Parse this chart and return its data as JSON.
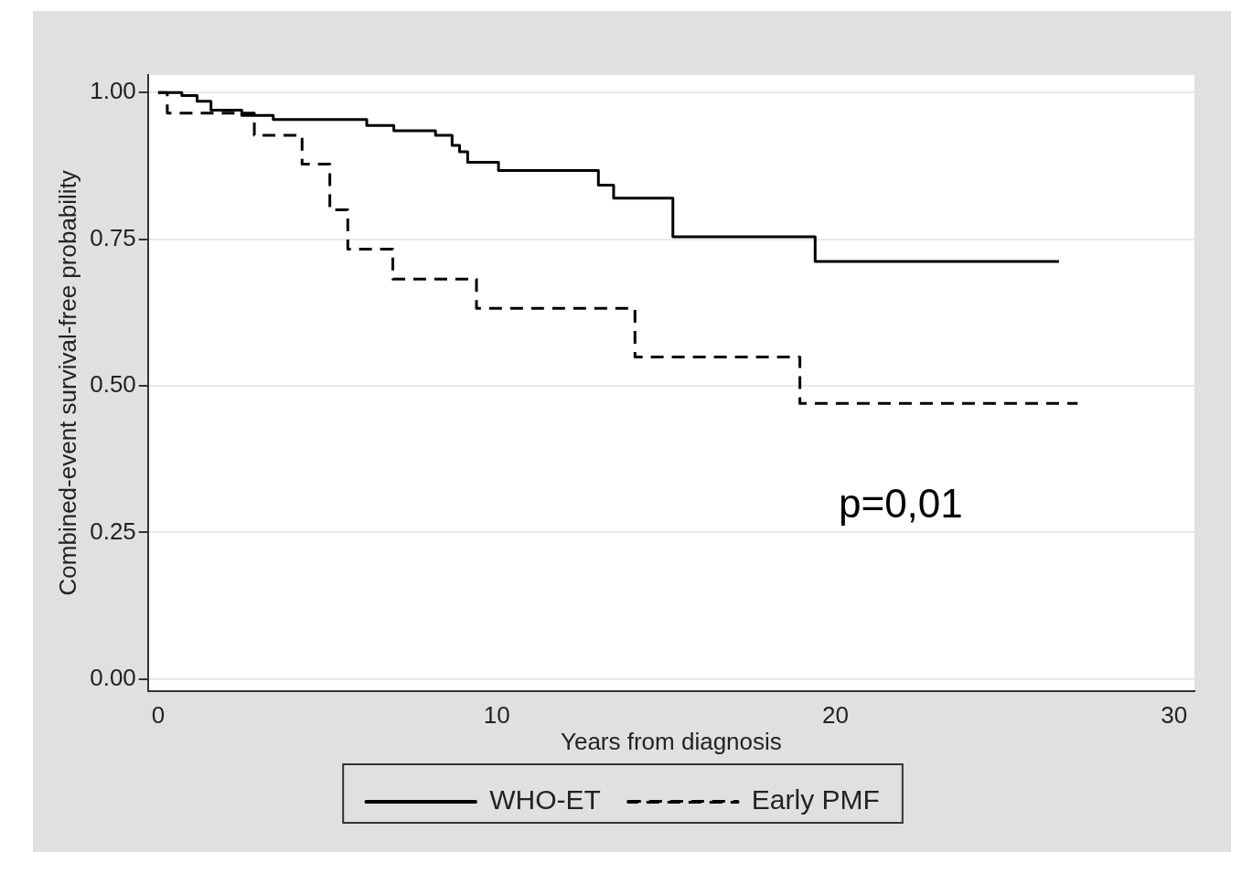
{
  "chart_data": {
    "type": "step",
    "xlabel": "Years from diagnosis",
    "ylabel": "Combined-event survival-free probability",
    "xlim": [
      -0.3,
      30.6
    ],
    "xticks": [
      0,
      10,
      20,
      30
    ],
    "ylim": [
      -0.02,
      1.03
    ],
    "yticks": [
      {
        "value": 0,
        "label": "0.00"
      },
      {
        "value": 0.25,
        "label": "0.25"
      },
      {
        "value": 0.5,
        "label": "0.50"
      },
      {
        "value": 0.75,
        "label": "0.75"
      },
      {
        "value": 1,
        "label": "1.00"
      }
    ],
    "grid": "y",
    "legend": "bottom",
    "annotations": [
      "p=0,01"
    ],
    "series": [
      {
        "name": "WHO-ET",
        "color": "#000000",
        "line_style": "solid",
        "x": [
          0,
          0.7,
          1.15,
          1.56,
          2.47,
          3.4,
          6.16,
          6.96,
          8.19,
          8.68,
          8.9,
          9.14,
          10.05,
          13.0,
          13.45,
          15.2,
          19.4,
          26.6
        ],
        "values": [
          1.0,
          0.995,
          0.985,
          0.97,
          0.961,
          0.954,
          0.944,
          0.935,
          0.927,
          0.91,
          0.899,
          0.881,
          0.867,
          0.842,
          0.82,
          0.754,
          0.712,
          0.712
        ]
      },
      {
        "name": "Early PMF",
        "color": "#000000",
        "line_style": "dashed",
        "x": [
          0,
          0.27,
          2.84,
          4.25,
          5.07,
          5.6,
          6.93,
          9.4,
          14.08,
          18.95,
          27.15
        ],
        "values": [
          1.0,
          0.965,
          0.927,
          0.878,
          0.8,
          0.733,
          0.682,
          0.632,
          0.549,
          0.47,
          0.47
        ]
      }
    ]
  }
}
